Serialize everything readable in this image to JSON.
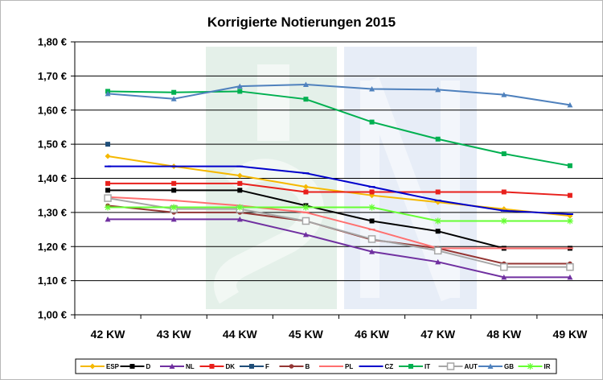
{
  "chart_data": {
    "type": "line",
    "title": "Korrigierte Notierungen 2015",
    "categories": [
      "42 KW",
      "43 KW",
      "44 KW",
      "45 KW",
      "46 KW",
      "47 KW",
      "48 KW",
      "49 KW"
    ],
    "ylim": [
      1.0,
      1.8
    ],
    "yticks": [
      1.0,
      1.1,
      1.2,
      1.3,
      1.4,
      1.5,
      1.6,
      1.7,
      1.8
    ],
    "ytick_labels": [
      "1,00 €",
      "1,10 €",
      "1,20 €",
      "1,30 €",
      "1,40 €",
      "1,50 €",
      "1,60 €",
      "1,70 €",
      "1,80 €"
    ],
    "grid": true,
    "legend_position": "bottom",
    "series": [
      {
        "name": "ESP",
        "color": "#f5b800",
        "marker": "diamond",
        "values": [
          1.465,
          1.435,
          1.408,
          1.375,
          1.35,
          1.33,
          1.31,
          1.29
        ]
      },
      {
        "name": "D",
        "color": "#000000",
        "marker": "square",
        "values": [
          1.365,
          1.365,
          1.365,
          1.32,
          1.275,
          1.245,
          1.195,
          1.195
        ]
      },
      {
        "name": "NL",
        "color": "#7030a0",
        "marker": "triangle",
        "values": [
          1.28,
          1.28,
          1.28,
          1.235,
          1.185,
          1.155,
          1.11,
          1.11
        ]
      },
      {
        "name": "DK",
        "color": "#e8201c",
        "marker": "square",
        "values": [
          1.385,
          1.385,
          1.385,
          1.36,
          1.36,
          1.36,
          1.36,
          1.35
        ]
      },
      {
        "name": "F",
        "color": "#1f4e79",
        "marker": "square",
        "values": [
          1.5,
          null,
          null,
          null,
          null,
          null,
          null,
          null
        ]
      },
      {
        "name": "B",
        "color": "#943634",
        "marker": "circle",
        "values": [
          1.32,
          1.3,
          1.3,
          1.275,
          1.22,
          1.195,
          1.15,
          1.15
        ]
      },
      {
        "name": "PL",
        "color": "#ff6f6f",
        "marker": "dash",
        "values": [
          1.345,
          1.335,
          1.32,
          1.3,
          1.25,
          1.195,
          1.195,
          1.195
        ]
      },
      {
        "name": "CZ",
        "color": "#0000cc",
        "marker": "dash",
        "values": [
          1.435,
          1.435,
          1.435,
          1.415,
          1.375,
          1.335,
          1.305,
          1.295
        ]
      },
      {
        "name": "IT",
        "color": "#00b050",
        "marker": "square",
        "values": [
          1.655,
          1.652,
          1.655,
          1.632,
          1.565,
          1.515,
          1.472,
          1.437
        ]
      },
      {
        "name": "AUT",
        "color": "#a6a6a6",
        "marker": "open-square",
        "values": [
          1.342,
          1.31,
          1.31,
          1.275,
          1.222,
          1.188,
          1.14,
          1.14
        ]
      },
      {
        "name": "GB",
        "color": "#4f81bd",
        "marker": "triangle",
        "values": [
          1.648,
          1.633,
          1.67,
          1.675,
          1.662,
          1.66,
          1.645,
          1.615
        ]
      },
      {
        "name": "IR",
        "color": "#66ff33",
        "marker": "star",
        "values": [
          1.315,
          1.315,
          1.315,
          1.315,
          1.315,
          1.275,
          1.275,
          1.275
        ]
      }
    ]
  }
}
